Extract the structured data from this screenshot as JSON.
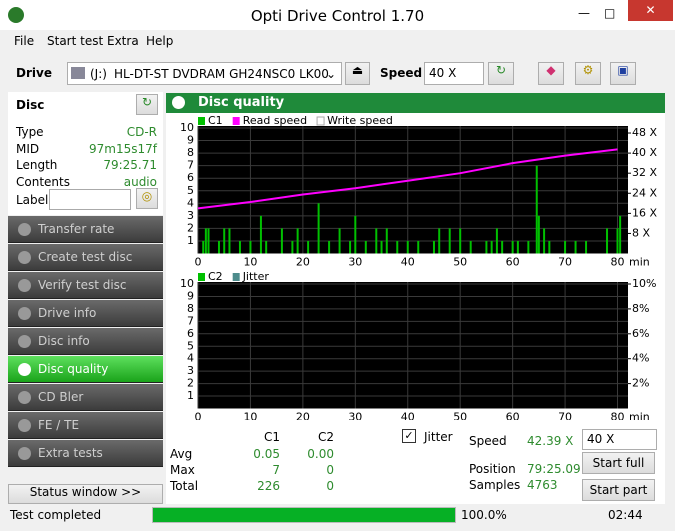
{
  "window": {
    "title": "Opti Drive Control 1.70"
  },
  "menu": [
    "File",
    "Start test",
    "Extra",
    "Help"
  ],
  "toolbar": {
    "drive_label": "Drive",
    "drive_letter": "(J:)",
    "drive_name": "HL-DT-ST DVDRAM GH24NSC0 LK00",
    "speed_label": "Speed",
    "speed": "40 X"
  },
  "disc": {
    "title": "Disc",
    "fields": [
      [
        "Type",
        "CD-R"
      ],
      [
        "MID",
        "97m15s17f"
      ],
      [
        "Length",
        "79:25.71"
      ],
      [
        "Contents",
        "audio"
      ]
    ],
    "label": "Label"
  },
  "nav": [
    "Transfer rate",
    "Create test disc",
    "Verify test disc",
    "Drive info",
    "Disc info",
    "Disc quality",
    "CD Bler",
    "FE / TE",
    "Extra tests"
  ],
  "active_nav": 5,
  "status_window": "Status window >>",
  "panel_title": "Disc quality",
  "chart_data": [
    {
      "type": "combo",
      "x_label": "min",
      "xlim": [
        0,
        82
      ],
      "xticks": [
        0,
        10,
        20,
        30,
        40,
        50,
        60,
        70,
        80
      ],
      "ylim": [
        0,
        10
      ],
      "yticks": [
        1,
        2,
        3,
        4,
        5,
        6,
        7,
        8,
        9,
        10
      ],
      "y2lim": [
        0,
        50
      ],
      "y2ticks": [
        {
          "value": 8,
          "label": "8 X"
        },
        {
          "value": 16,
          "label": "16 X"
        },
        {
          "value": 24,
          "label": "24 X"
        },
        {
          "value": 32,
          "label": "32 X"
        },
        {
          "value": 40,
          "label": "40 X"
        },
        {
          "value": 48,
          "label": "48 X"
        }
      ],
      "series": [
        {
          "name": "C1",
          "color": "#00c000",
          "x": [
            1,
            1.5,
            2,
            4,
            5,
            6,
            8,
            10,
            12,
            13,
            16,
            18,
            19,
            21,
            23,
            25,
            27,
            29,
            30,
            32,
            34,
            35,
            36,
            38,
            40,
            42,
            45,
            46,
            48,
            50,
            52,
            55,
            56,
            57,
            58,
            60,
            61,
            63,
            64.6,
            65,
            66,
            67,
            70,
            72,
            74,
            78,
            80,
            80.5
          ],
          "values": [
            1,
            2,
            2,
            1,
            2,
            2,
            1,
            1,
            3,
            1,
            2,
            1,
            2,
            1,
            4,
            1,
            2,
            1,
            3,
            1,
            2,
            1,
            2,
            1,
            1,
            1,
            1,
            2,
            2,
            2,
            1,
            1,
            1,
            2,
            1,
            1,
            1,
            1,
            7,
            3,
            2,
            1,
            1,
            1,
            1,
            2,
            2,
            3
          ]
        },
        {
          "name": "Read speed",
          "color": "#ff00ff",
          "axis": "y2",
          "x": [
            0,
            10,
            20,
            30,
            40,
            50,
            60,
            70,
            80
          ],
          "values": [
            18,
            20.5,
            23.5,
            26,
            29,
            32,
            36,
            39,
            41.5
          ]
        },
        {
          "name": "Write speed",
          "color": "#ffffff"
        }
      ]
    },
    {
      "type": "combo",
      "x_label": "min",
      "xlim": [
        0,
        82
      ],
      "xticks": [
        0,
        10,
        20,
        30,
        40,
        50,
        60,
        70,
        80
      ],
      "ylim": [
        0,
        10
      ],
      "yticks": [
        1,
        2,
        3,
        4,
        5,
        6,
        7,
        8,
        9,
        10
      ],
      "y2lim": [
        0,
        10
      ],
      "y2ticks": [
        {
          "value": 2,
          "label": "2%"
        },
        {
          "value": 4,
          "label": "4%"
        },
        {
          "value": 6,
          "label": "6%"
        },
        {
          "value": 8,
          "label": "8%"
        },
        {
          "value": 10,
          "label": "10%"
        }
      ],
      "series": [
        {
          "name": "C2",
          "color": "#00c000"
        },
        {
          "name": "Jitter",
          "color": "#4d8c8c"
        }
      ]
    }
  ],
  "stats": {
    "headers": [
      "C1",
      "C2"
    ],
    "rows": [
      [
        "Avg",
        "0.05",
        "0.00"
      ],
      [
        "Max",
        "7",
        "0"
      ],
      [
        "Total",
        "226",
        "0"
      ]
    ]
  },
  "jitter_checkbox": "Jitter",
  "info": [
    [
      "Speed",
      "42.39 X"
    ],
    [
      "Position",
      "79:25.09"
    ],
    [
      "Samples",
      "4763"
    ]
  ],
  "speed_select": "40 X",
  "buttons": [
    "Start full",
    "Start part"
  ],
  "status": {
    "text": "Test completed",
    "progress": 100,
    "progress_label": "100.0%",
    "progress_max": 100,
    "time": "02:44"
  }
}
